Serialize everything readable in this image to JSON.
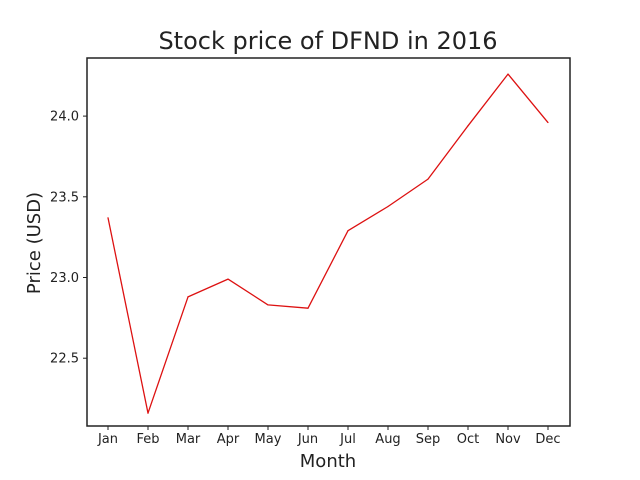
{
  "chart_data": {
    "type": "line",
    "title": "Stock price of DFND in 2016",
    "xlabel": "Month",
    "ylabel": "Price (USD)",
    "categories": [
      "Jan",
      "Feb",
      "Mar",
      "Apr",
      "May",
      "Jun",
      "Jul",
      "Aug",
      "Sep",
      "Oct",
      "Nov",
      "Dec"
    ],
    "series": [
      {
        "color": "#dd1111",
        "values": [
          23.37,
          22.16,
          22.88,
          22.99,
          22.83,
          22.81,
          23.29,
          23.44,
          23.61,
          23.94,
          24.26,
          23.96
        ]
      }
    ],
    "ylim": [
      22.08,
      24.36
    ],
    "yticks": [
      22.5,
      23.0,
      23.5,
      24.0
    ],
    "ytick_labels": [
      "22.5",
      "23.0",
      "23.5",
      "24.0"
    ],
    "grid": false,
    "legend": false
  }
}
